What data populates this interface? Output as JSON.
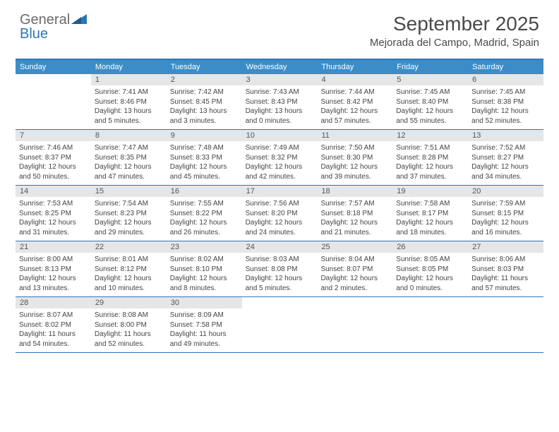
{
  "brand": {
    "name_part1": "General",
    "name_part2": "Blue",
    "gray_color": "#6b6b6b",
    "blue_color": "#2d76b6"
  },
  "title": "September 2025",
  "location": "Mejorada del Campo, Madrid, Spain",
  "colors": {
    "header_bar": "#3b8dca",
    "rule": "#2d76b6",
    "daynum_bg": "#e6e6e6",
    "text": "#444444",
    "background": "#ffffff"
  },
  "fonts": {
    "title_size_pt": 21,
    "location_size_pt": 11,
    "weekday_size_pt": 8,
    "body_size_pt": 7.5
  },
  "weekdays": [
    "Sunday",
    "Monday",
    "Tuesday",
    "Wednesday",
    "Thursday",
    "Friday",
    "Saturday"
  ],
  "weeks": [
    [
      {
        "n": "",
        "sunrise": "",
        "sunset": "",
        "daylight": ""
      },
      {
        "n": "1",
        "sunrise": "Sunrise: 7:41 AM",
        "sunset": "Sunset: 8:46 PM",
        "daylight": "Daylight: 13 hours and 5 minutes."
      },
      {
        "n": "2",
        "sunrise": "Sunrise: 7:42 AM",
        "sunset": "Sunset: 8:45 PM",
        "daylight": "Daylight: 13 hours and 3 minutes."
      },
      {
        "n": "3",
        "sunrise": "Sunrise: 7:43 AM",
        "sunset": "Sunset: 8:43 PM",
        "daylight": "Daylight: 13 hours and 0 minutes."
      },
      {
        "n": "4",
        "sunrise": "Sunrise: 7:44 AM",
        "sunset": "Sunset: 8:42 PM",
        "daylight": "Daylight: 12 hours and 57 minutes."
      },
      {
        "n": "5",
        "sunrise": "Sunrise: 7:45 AM",
        "sunset": "Sunset: 8:40 PM",
        "daylight": "Daylight: 12 hours and 55 minutes."
      },
      {
        "n": "6",
        "sunrise": "Sunrise: 7:45 AM",
        "sunset": "Sunset: 8:38 PM",
        "daylight": "Daylight: 12 hours and 52 minutes."
      }
    ],
    [
      {
        "n": "7",
        "sunrise": "Sunrise: 7:46 AM",
        "sunset": "Sunset: 8:37 PM",
        "daylight": "Daylight: 12 hours and 50 minutes."
      },
      {
        "n": "8",
        "sunrise": "Sunrise: 7:47 AM",
        "sunset": "Sunset: 8:35 PM",
        "daylight": "Daylight: 12 hours and 47 minutes."
      },
      {
        "n": "9",
        "sunrise": "Sunrise: 7:48 AM",
        "sunset": "Sunset: 8:33 PM",
        "daylight": "Daylight: 12 hours and 45 minutes."
      },
      {
        "n": "10",
        "sunrise": "Sunrise: 7:49 AM",
        "sunset": "Sunset: 8:32 PM",
        "daylight": "Daylight: 12 hours and 42 minutes."
      },
      {
        "n": "11",
        "sunrise": "Sunrise: 7:50 AM",
        "sunset": "Sunset: 8:30 PM",
        "daylight": "Daylight: 12 hours and 39 minutes."
      },
      {
        "n": "12",
        "sunrise": "Sunrise: 7:51 AM",
        "sunset": "Sunset: 8:28 PM",
        "daylight": "Daylight: 12 hours and 37 minutes."
      },
      {
        "n": "13",
        "sunrise": "Sunrise: 7:52 AM",
        "sunset": "Sunset: 8:27 PM",
        "daylight": "Daylight: 12 hours and 34 minutes."
      }
    ],
    [
      {
        "n": "14",
        "sunrise": "Sunrise: 7:53 AM",
        "sunset": "Sunset: 8:25 PM",
        "daylight": "Daylight: 12 hours and 31 minutes."
      },
      {
        "n": "15",
        "sunrise": "Sunrise: 7:54 AM",
        "sunset": "Sunset: 8:23 PM",
        "daylight": "Daylight: 12 hours and 29 minutes."
      },
      {
        "n": "16",
        "sunrise": "Sunrise: 7:55 AM",
        "sunset": "Sunset: 8:22 PM",
        "daylight": "Daylight: 12 hours and 26 minutes."
      },
      {
        "n": "17",
        "sunrise": "Sunrise: 7:56 AM",
        "sunset": "Sunset: 8:20 PM",
        "daylight": "Daylight: 12 hours and 24 minutes."
      },
      {
        "n": "18",
        "sunrise": "Sunrise: 7:57 AM",
        "sunset": "Sunset: 8:18 PM",
        "daylight": "Daylight: 12 hours and 21 minutes."
      },
      {
        "n": "19",
        "sunrise": "Sunrise: 7:58 AM",
        "sunset": "Sunset: 8:17 PM",
        "daylight": "Daylight: 12 hours and 18 minutes."
      },
      {
        "n": "20",
        "sunrise": "Sunrise: 7:59 AM",
        "sunset": "Sunset: 8:15 PM",
        "daylight": "Daylight: 12 hours and 16 minutes."
      }
    ],
    [
      {
        "n": "21",
        "sunrise": "Sunrise: 8:00 AM",
        "sunset": "Sunset: 8:13 PM",
        "daylight": "Daylight: 12 hours and 13 minutes."
      },
      {
        "n": "22",
        "sunrise": "Sunrise: 8:01 AM",
        "sunset": "Sunset: 8:12 PM",
        "daylight": "Daylight: 12 hours and 10 minutes."
      },
      {
        "n": "23",
        "sunrise": "Sunrise: 8:02 AM",
        "sunset": "Sunset: 8:10 PM",
        "daylight": "Daylight: 12 hours and 8 minutes."
      },
      {
        "n": "24",
        "sunrise": "Sunrise: 8:03 AM",
        "sunset": "Sunset: 8:08 PM",
        "daylight": "Daylight: 12 hours and 5 minutes."
      },
      {
        "n": "25",
        "sunrise": "Sunrise: 8:04 AM",
        "sunset": "Sunset: 8:07 PM",
        "daylight": "Daylight: 12 hours and 2 minutes."
      },
      {
        "n": "26",
        "sunrise": "Sunrise: 8:05 AM",
        "sunset": "Sunset: 8:05 PM",
        "daylight": "Daylight: 12 hours and 0 minutes."
      },
      {
        "n": "27",
        "sunrise": "Sunrise: 8:06 AM",
        "sunset": "Sunset: 8:03 PM",
        "daylight": "Daylight: 11 hours and 57 minutes."
      }
    ],
    [
      {
        "n": "28",
        "sunrise": "Sunrise: 8:07 AM",
        "sunset": "Sunset: 8:02 PM",
        "daylight": "Daylight: 11 hours and 54 minutes."
      },
      {
        "n": "29",
        "sunrise": "Sunrise: 8:08 AM",
        "sunset": "Sunset: 8:00 PM",
        "daylight": "Daylight: 11 hours and 52 minutes."
      },
      {
        "n": "30",
        "sunrise": "Sunrise: 8:09 AM",
        "sunset": "Sunset: 7:58 PM",
        "daylight": "Daylight: 11 hours and 49 minutes."
      },
      {
        "n": "",
        "sunrise": "",
        "sunset": "",
        "daylight": ""
      },
      {
        "n": "",
        "sunrise": "",
        "sunset": "",
        "daylight": ""
      },
      {
        "n": "",
        "sunrise": "",
        "sunset": "",
        "daylight": ""
      },
      {
        "n": "",
        "sunrise": "",
        "sunset": "",
        "daylight": ""
      }
    ]
  ]
}
